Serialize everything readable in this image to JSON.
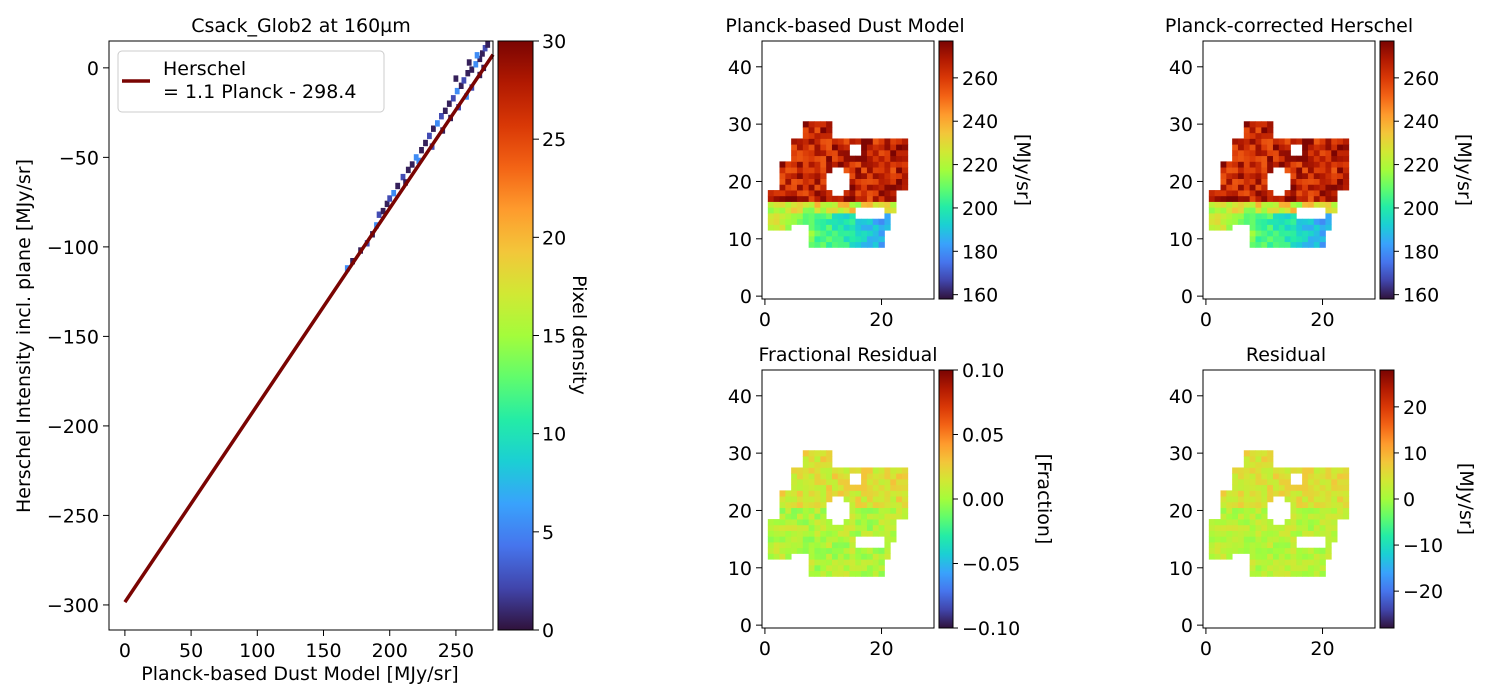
{
  "figure": {
    "colormap_stops": [
      "#30123b",
      "#4145ab",
      "#4675ed",
      "#39a2fc",
      "#1bcfd4",
      "#24eca6",
      "#61fc6c",
      "#a4fc3b",
      "#d1e834",
      "#f3c63a",
      "#fe9b2d",
      "#f36315",
      "#d93806",
      "#b11901",
      "#7a0402"
    ]
  },
  "chart_data": [
    {
      "type": "heatmap",
      "title": "Csack_Glob2 at 160µm",
      "xlabel": "Planck-based Dust Model [MJy/sr]",
      "ylabel": "Herschel Intensity incl. plane [MJy/sr]",
      "xlim": [
        -12,
        278
      ],
      "ylim": [
        -314,
        15
      ],
      "xticks": [
        0,
        50,
        100,
        150,
        200,
        250
      ],
      "yticks": [
        0,
        -50,
        -100,
        -150,
        -200,
        -250,
        -300
      ],
      "colorbar": {
        "label": "Pixel density",
        "range": [
          0,
          30
        ],
        "ticks": [
          0,
          5,
          10,
          15,
          20,
          25,
          30
        ]
      },
      "legend": {
        "position": "top-left",
        "entries": [
          "Herschel\n= 1.1 Planck - 298.4"
        ]
      },
      "fit_line": {
        "slope": 1.1,
        "intercept": -298.4,
        "x_range": [
          0,
          278
        ],
        "color": "#7a0402"
      },
      "density_points": [
        {
          "x": 168,
          "y": -112
        },
        {
          "x": 172,
          "y": -108
        },
        {
          "x": 178,
          "y": -102
        },
        {
          "x": 183,
          "y": -98
        },
        {
          "x": 187,
          "y": -93
        },
        {
          "x": 190,
          "y": -88
        },
        {
          "x": 192,
          "y": -82
        },
        {
          "x": 195,
          "y": -80
        },
        {
          "x": 198,
          "y": -76
        },
        {
          "x": 200,
          "y": -73
        },
        {
          "x": 203,
          "y": -70
        },
        {
          "x": 206,
          "y": -66
        },
        {
          "x": 210,
          "y": -61
        },
        {
          "x": 214,
          "y": -57
        },
        {
          "x": 217,
          "y": -54
        },
        {
          "x": 220,
          "y": -50
        },
        {
          "x": 224,
          "y": -46
        },
        {
          "x": 227,
          "y": -42
        },
        {
          "x": 230,
          "y": -38
        },
        {
          "x": 233,
          "y": -34
        },
        {
          "x": 236,
          "y": -31
        },
        {
          "x": 239,
          "y": -27
        },
        {
          "x": 242,
          "y": -24
        },
        {
          "x": 245,
          "y": -20
        },
        {
          "x": 248,
          "y": -17
        },
        {
          "x": 251,
          "y": -13
        },
        {
          "x": 254,
          "y": -10
        },
        {
          "x": 256,
          "y": -7
        },
        {
          "x": 259,
          "y": -3
        },
        {
          "x": 262,
          "y": -1
        },
        {
          "x": 265,
          "y": 2
        },
        {
          "x": 268,
          "y": 5
        },
        {
          "x": 270,
          "y": 8
        },
        {
          "x": 272,
          "y": 11
        },
        {
          "x": 274,
          "y": 13
        },
        {
          "x": 258,
          "y": -16
        },
        {
          "x": 252,
          "y": -22
        },
        {
          "x": 246,
          "y": -28
        },
        {
          "x": 240,
          "y": -35
        },
        {
          "x": 232,
          "y": -44
        },
        {
          "x": 222,
          "y": -52
        },
        {
          "x": 212,
          "y": -64
        },
        {
          "x": 262,
          "y": -11
        },
        {
          "x": 268,
          "y": -4
        },
        {
          "x": 271,
          "y": 0
        },
        {
          "x": 266,
          "y": 7
        },
        {
          "x": 260,
          "y": 3
        },
        {
          "x": 250,
          "y": -6
        }
      ]
    },
    {
      "type": "heatmap",
      "title": "Planck-based Dust Model",
      "xlim": [
        -0.5,
        29
      ],
      "ylim": [
        -0.5,
        44.5
      ],
      "xticks": [
        0,
        20
      ],
      "yticks": [
        0,
        10,
        20,
        30,
        40
      ],
      "colorbar": {
        "label": "[MJy/sr]",
        "range": [
          158,
          277
        ],
        "ticks": [
          160,
          180,
          200,
          220,
          240,
          260
        ]
      },
      "map": "dust"
    },
    {
      "type": "heatmap",
      "title": "Planck-corrected Herschel",
      "xlim": [
        -0.5,
        29
      ],
      "ylim": [
        -0.5,
        44.5
      ],
      "xticks": [
        0,
        20
      ],
      "yticks": [
        0,
        10,
        20,
        30,
        40
      ],
      "colorbar": {
        "label": "[MJy/sr]",
        "range": [
          158,
          277
        ],
        "ticks": [
          160,
          180,
          200,
          220,
          240,
          260
        ]
      },
      "map": "corrected"
    },
    {
      "type": "heatmap",
      "title": "Fractional Residual",
      "xlim": [
        -0.5,
        29
      ],
      "ylim": [
        -0.5,
        44.5
      ],
      "xticks": [
        0,
        20
      ],
      "yticks": [
        0,
        10,
        20,
        30,
        40
      ],
      "colorbar": {
        "label": "[Fraction]",
        "range": [
          -0.1,
          0.1
        ],
        "ticks": [
          0.1,
          0.05,
          0.0,
          -0.05,
          -0.1
        ],
        "tick_labels": [
          "0.10",
          "0.05",
          "0.00",
          "−0.05",
          "−0.10"
        ]
      },
      "map": "fractional"
    },
    {
      "type": "heatmap",
      "title": "Residual",
      "xlim": [
        -0.5,
        29
      ],
      "ylim": [
        -0.5,
        44.5
      ],
      "xticks": [
        0,
        20
      ],
      "yticks": [
        0,
        10,
        20,
        30,
        40
      ],
      "colorbar": {
        "label": "[MJy/sr]",
        "range": [
          -28,
          28
        ],
        "ticks": [
          20,
          10,
          0,
          -10,
          -20
        ]
      },
      "map": "residual"
    }
  ]
}
